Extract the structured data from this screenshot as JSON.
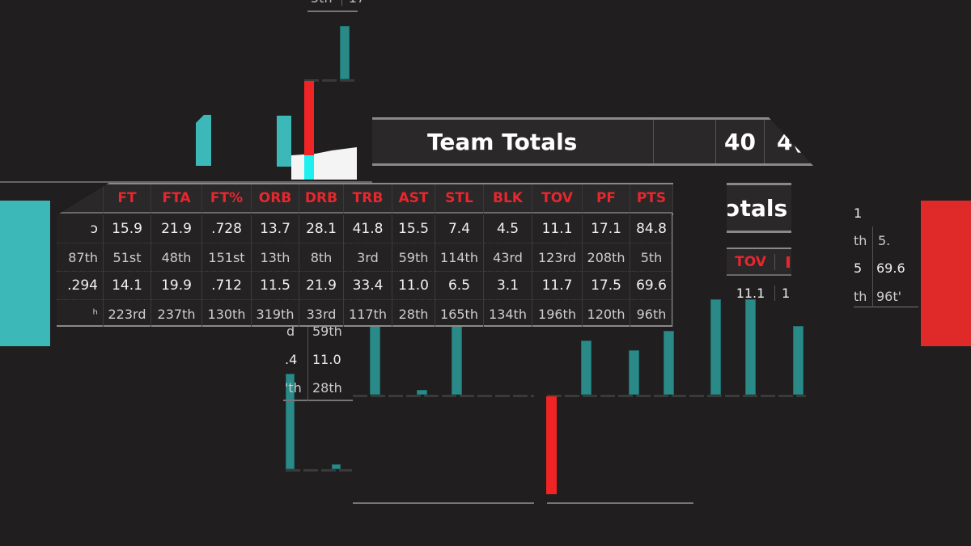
{
  "colors": {
    "accent_red": "#e8262e",
    "teal": "#2a8a88",
    "cyan_block": "#3cb8b8",
    "red_block": "#e02a2a",
    "background": "#201e1e"
  },
  "top_fragment": {
    "rank": "5th",
    "value": "17"
  },
  "banner": {
    "title": "Team Totals",
    "values": [
      "40",
      "4("
    ]
  },
  "totals_fragment": {
    "title": "ɔtals",
    "header": "TOV",
    "value": "11.1",
    "next_value": "1"
  },
  "table": {
    "headers": [
      "",
      "FT",
      "FTA",
      "FT%",
      "ORB",
      "DRB",
      "TRB",
      "AST",
      "STL",
      "BLK",
      "TOV",
      "PF",
      "PTS"
    ],
    "rows": [
      [
        "ɔ",
        "15.9",
        "21.9",
        ".728",
        "13.7",
        "28.1",
        "41.8",
        "15.5",
        "7.4",
        "4.5",
        "11.1",
        "17.1",
        "84.8"
      ],
      [
        "87th",
        "51st",
        "48th",
        "151st",
        "13th",
        "8th",
        "3rd",
        "59th",
        "114th",
        "43rd",
        "123rd",
        "208th",
        "5th"
      ],
      [
        ".294",
        "14.1",
        "19.9",
        ".712",
        "11.5",
        "21.9",
        "33.4",
        "11.0",
        "6.5",
        "3.1",
        "11.7",
        "17.5",
        "69.6"
      ],
      [
        "ʰ",
        "223rd",
        "237th",
        "130th",
        "319th",
        "33rd",
        "117th",
        "28th",
        "165th",
        "134th",
        "196th",
        "120th",
        "96th"
      ]
    ]
  },
  "lower_fragment": {
    "rows": [
      [
        "d",
        "59th"
      ],
      [
        ".4",
        "11.0"
      ],
      [
        "'th",
        "28th"
      ]
    ]
  },
  "right_fragment": {
    "rows": [
      [
        "1",
        ""
      ],
      [
        "th",
        "5."
      ],
      [
        "5",
        "69.6"
      ],
      [
        "th",
        "96t'"
      ]
    ]
  }
}
